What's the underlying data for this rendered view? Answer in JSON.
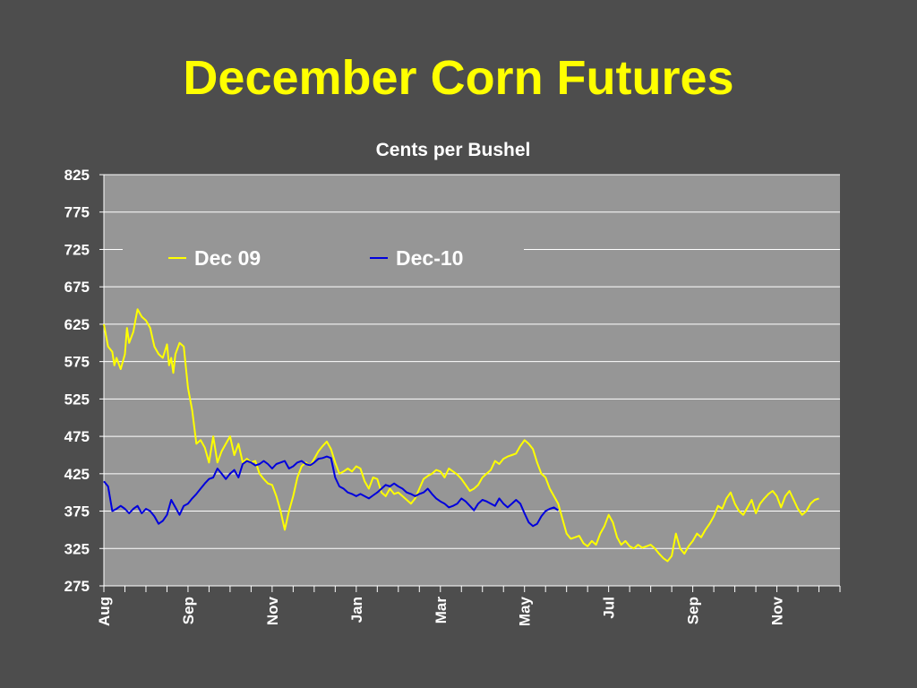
{
  "slide": {
    "title": "December Corn Futures"
  },
  "chart_data": {
    "type": "line",
    "subtitle": "Cents per Bushel",
    "ylim": [
      275,
      825
    ],
    "y_ticks": [
      275,
      325,
      375,
      425,
      475,
      525,
      575,
      625,
      675,
      725,
      775,
      825
    ],
    "x_range": [
      0,
      35
    ],
    "x_month_ticks": [
      {
        "label": "Aug",
        "x": 0
      },
      {
        "label": "Sep",
        "x": 4
      },
      {
        "label": "Nov",
        "x": 8
      },
      {
        "label": "Jan",
        "x": 12
      },
      {
        "label": "Mar",
        "x": 16
      },
      {
        "label": "May",
        "x": 20
      },
      {
        "label": "Jul",
        "x": 24
      },
      {
        "label": "Sep",
        "x": 28
      },
      {
        "label": "Nov",
        "x": 32
      }
    ],
    "grid": true,
    "legend_position": "top",
    "series": [
      {
        "name": "Dec 09",
        "color": "#ffff00",
        "points": [
          [
            0.0,
            625
          ],
          [
            0.2,
            595
          ],
          [
            0.4,
            588
          ],
          [
            0.5,
            570
          ],
          [
            0.6,
            580
          ],
          [
            0.8,
            565
          ],
          [
            1.0,
            585
          ],
          [
            1.1,
            620
          ],
          [
            1.2,
            600
          ],
          [
            1.4,
            615
          ],
          [
            1.5,
            630
          ],
          [
            1.6,
            645
          ],
          [
            1.8,
            635
          ],
          [
            2.0,
            630
          ],
          [
            2.2,
            620
          ],
          [
            2.4,
            595
          ],
          [
            2.6,
            585
          ],
          [
            2.8,
            580
          ],
          [
            3.0,
            598
          ],
          [
            3.1,
            570
          ],
          [
            3.2,
            580
          ],
          [
            3.3,
            560
          ],
          [
            3.4,
            585
          ],
          [
            3.6,
            600
          ],
          [
            3.8,
            595
          ],
          [
            4.0,
            540
          ],
          [
            4.2,
            510
          ],
          [
            4.4,
            465
          ],
          [
            4.6,
            470
          ],
          [
            4.8,
            460
          ],
          [
            5.0,
            440
          ],
          [
            5.2,
            475
          ],
          [
            5.4,
            440
          ],
          [
            5.6,
            455
          ],
          [
            5.8,
            465
          ],
          [
            6.0,
            475
          ],
          [
            6.2,
            450
          ],
          [
            6.4,
            465
          ],
          [
            6.6,
            440
          ],
          [
            6.8,
            445
          ],
          [
            7.0,
            440
          ],
          [
            7.2,
            442
          ],
          [
            7.4,
            425
          ],
          [
            7.6,
            418
          ],
          [
            7.8,
            412
          ],
          [
            8.0,
            410
          ],
          [
            8.2,
            395
          ],
          [
            8.4,
            375
          ],
          [
            8.6,
            350
          ],
          [
            8.8,
            375
          ],
          [
            9.0,
            395
          ],
          [
            9.2,
            420
          ],
          [
            9.4,
            435
          ],
          [
            9.6,
            440
          ],
          [
            9.8,
            435
          ],
          [
            10.0,
            445
          ],
          [
            10.2,
            455
          ],
          [
            10.4,
            462
          ],
          [
            10.6,
            468
          ],
          [
            10.8,
            458
          ],
          [
            11.0,
            440
          ],
          [
            11.2,
            425
          ],
          [
            11.4,
            428
          ],
          [
            11.6,
            432
          ],
          [
            11.8,
            428
          ],
          [
            12.0,
            435
          ],
          [
            12.2,
            432
          ],
          [
            12.4,
            415
          ],
          [
            12.6,
            405
          ],
          [
            12.8,
            420
          ],
          [
            13.0,
            418
          ],
          [
            13.2,
            400
          ],
          [
            13.4,
            395
          ],
          [
            13.6,
            405
          ],
          [
            13.8,
            398
          ],
          [
            14.0,
            400
          ],
          [
            14.2,
            395
          ],
          [
            14.4,
            390
          ],
          [
            14.6,
            385
          ],
          [
            14.8,
            392
          ],
          [
            15.0,
            405
          ],
          [
            15.2,
            418
          ],
          [
            15.4,
            422
          ],
          [
            15.6,
            425
          ],
          [
            15.8,
            430
          ],
          [
            16.0,
            428
          ],
          [
            16.2,
            420
          ],
          [
            16.4,
            432
          ],
          [
            16.6,
            428
          ],
          [
            16.8,
            424
          ],
          [
            17.0,
            418
          ],
          [
            17.2,
            410
          ],
          [
            17.4,
            402
          ],
          [
            17.6,
            405
          ],
          [
            17.8,
            410
          ],
          [
            18.0,
            420
          ],
          [
            18.2,
            425
          ],
          [
            18.4,
            430
          ],
          [
            18.6,
            442
          ],
          [
            18.8,
            438
          ],
          [
            19.0,
            445
          ],
          [
            19.2,
            448
          ],
          [
            19.4,
            450
          ],
          [
            19.6,
            452
          ],
          [
            19.8,
            462
          ],
          [
            20.0,
            470
          ],
          [
            20.2,
            465
          ],
          [
            20.4,
            458
          ],
          [
            20.6,
            440
          ],
          [
            20.8,
            425
          ],
          [
            21.0,
            420
          ],
          [
            21.2,
            405
          ],
          [
            21.4,
            395
          ],
          [
            21.6,
            385
          ],
          [
            21.8,
            365
          ],
          [
            22.0,
            345
          ],
          [
            22.2,
            338
          ],
          [
            22.4,
            340
          ],
          [
            22.6,
            342
          ],
          [
            22.8,
            332
          ],
          [
            23.0,
            328
          ],
          [
            23.2,
            335
          ],
          [
            23.4,
            330
          ],
          [
            23.6,
            345
          ],
          [
            23.8,
            355
          ],
          [
            24.0,
            370
          ],
          [
            24.2,
            360
          ],
          [
            24.4,
            340
          ],
          [
            24.6,
            330
          ],
          [
            24.8,
            335
          ],
          [
            25.0,
            328
          ],
          [
            25.2,
            325
          ],
          [
            25.4,
            330
          ],
          [
            25.6,
            326
          ],
          [
            25.8,
            328
          ],
          [
            26.0,
            330
          ],
          [
            26.2,
            325
          ],
          [
            26.4,
            318
          ],
          [
            26.6,
            312
          ],
          [
            26.8,
            308
          ],
          [
            27.0,
            315
          ],
          [
            27.2,
            345
          ],
          [
            27.4,
            325
          ],
          [
            27.6,
            318
          ],
          [
            27.8,
            328
          ],
          [
            28.0,
            335
          ],
          [
            28.2,
            345
          ],
          [
            28.4,
            340
          ],
          [
            28.6,
            350
          ],
          [
            28.8,
            358
          ],
          [
            29.0,
            368
          ],
          [
            29.2,
            382
          ],
          [
            29.4,
            378
          ],
          [
            29.6,
            392
          ],
          [
            29.8,
            400
          ],
          [
            30.0,
            385
          ],
          [
            30.2,
            375
          ],
          [
            30.4,
            370
          ],
          [
            30.6,
            380
          ],
          [
            30.8,
            390
          ],
          [
            31.0,
            372
          ],
          [
            31.2,
            385
          ],
          [
            31.4,
            392
          ],
          [
            31.6,
            398
          ],
          [
            31.8,
            402
          ],
          [
            32.0,
            395
          ],
          [
            32.2,
            380
          ],
          [
            32.4,
            395
          ],
          [
            32.6,
            402
          ],
          [
            32.8,
            390
          ],
          [
            33.0,
            378
          ],
          [
            33.2,
            370
          ],
          [
            33.4,
            375
          ],
          [
            33.6,
            385
          ],
          [
            33.8,
            390
          ],
          [
            34.0,
            392
          ]
        ]
      },
      {
        "name": "Dec-10",
        "color": "#0000dd",
        "points": [
          [
            0.0,
            415
          ],
          [
            0.2,
            408
          ],
          [
            0.4,
            375
          ],
          [
            0.6,
            378
          ],
          [
            0.8,
            382
          ],
          [
            1.0,
            378
          ],
          [
            1.2,
            372
          ],
          [
            1.4,
            378
          ],
          [
            1.6,
            382
          ],
          [
            1.8,
            372
          ],
          [
            2.0,
            378
          ],
          [
            2.2,
            375
          ],
          [
            2.4,
            368
          ],
          [
            2.6,
            358
          ],
          [
            2.8,
            362
          ],
          [
            3.0,
            370
          ],
          [
            3.2,
            390
          ],
          [
            3.4,
            380
          ],
          [
            3.6,
            370
          ],
          [
            3.8,
            382
          ],
          [
            4.0,
            385
          ],
          [
            4.2,
            392
          ],
          [
            4.4,
            398
          ],
          [
            4.6,
            405
          ],
          [
            4.8,
            412
          ],
          [
            5.0,
            418
          ],
          [
            5.2,
            420
          ],
          [
            5.4,
            432
          ],
          [
            5.6,
            425
          ],
          [
            5.8,
            418
          ],
          [
            6.0,
            425
          ],
          [
            6.2,
            430
          ],
          [
            6.4,
            420
          ],
          [
            6.6,
            438
          ],
          [
            6.8,
            442
          ],
          [
            7.0,
            440
          ],
          [
            7.2,
            436
          ],
          [
            7.4,
            438
          ],
          [
            7.6,
            442
          ],
          [
            7.8,
            438
          ],
          [
            8.0,
            432
          ],
          [
            8.2,
            438
          ],
          [
            8.4,
            440
          ],
          [
            8.6,
            442
          ],
          [
            8.8,
            432
          ],
          [
            9.0,
            435
          ],
          [
            9.2,
            440
          ],
          [
            9.4,
            442
          ],
          [
            9.6,
            438
          ],
          [
            9.8,
            436
          ],
          [
            10.0,
            440
          ],
          [
            10.2,
            445
          ],
          [
            10.4,
            446
          ],
          [
            10.6,
            448
          ],
          [
            10.8,
            446
          ],
          [
            11.0,
            420
          ],
          [
            11.2,
            408
          ],
          [
            11.4,
            405
          ],
          [
            11.6,
            400
          ],
          [
            11.8,
            398
          ],
          [
            12.0,
            395
          ],
          [
            12.2,
            398
          ],
          [
            12.4,
            395
          ],
          [
            12.6,
            392
          ],
          [
            12.8,
            396
          ],
          [
            13.0,
            400
          ],
          [
            13.2,
            405
          ],
          [
            13.4,
            410
          ],
          [
            13.6,
            408
          ],
          [
            13.8,
            412
          ],
          [
            14.0,
            408
          ],
          [
            14.2,
            405
          ],
          [
            14.4,
            400
          ],
          [
            14.6,
            398
          ],
          [
            14.8,
            395
          ],
          [
            15.0,
            398
          ],
          [
            15.2,
            400
          ],
          [
            15.4,
            405
          ],
          [
            15.6,
            398
          ],
          [
            15.8,
            392
          ],
          [
            16.0,
            388
          ],
          [
            16.2,
            385
          ],
          [
            16.4,
            380
          ],
          [
            16.6,
            382
          ],
          [
            16.8,
            385
          ],
          [
            17.0,
            392
          ],
          [
            17.2,
            388
          ],
          [
            17.4,
            382
          ],
          [
            17.6,
            376
          ],
          [
            17.8,
            385
          ],
          [
            18.0,
            390
          ],
          [
            18.2,
            388
          ],
          [
            18.4,
            385
          ],
          [
            18.6,
            382
          ],
          [
            18.8,
            392
          ],
          [
            19.0,
            385
          ],
          [
            19.2,
            380
          ],
          [
            19.4,
            385
          ],
          [
            19.6,
            390
          ],
          [
            19.8,
            385
          ],
          [
            20.0,
            372
          ],
          [
            20.2,
            360
          ],
          [
            20.4,
            355
          ],
          [
            20.6,
            358
          ],
          [
            20.8,
            368
          ],
          [
            21.0,
            375
          ],
          [
            21.2,
            378
          ],
          [
            21.4,
            380
          ],
          [
            21.6,
            376
          ]
        ]
      }
    ]
  }
}
